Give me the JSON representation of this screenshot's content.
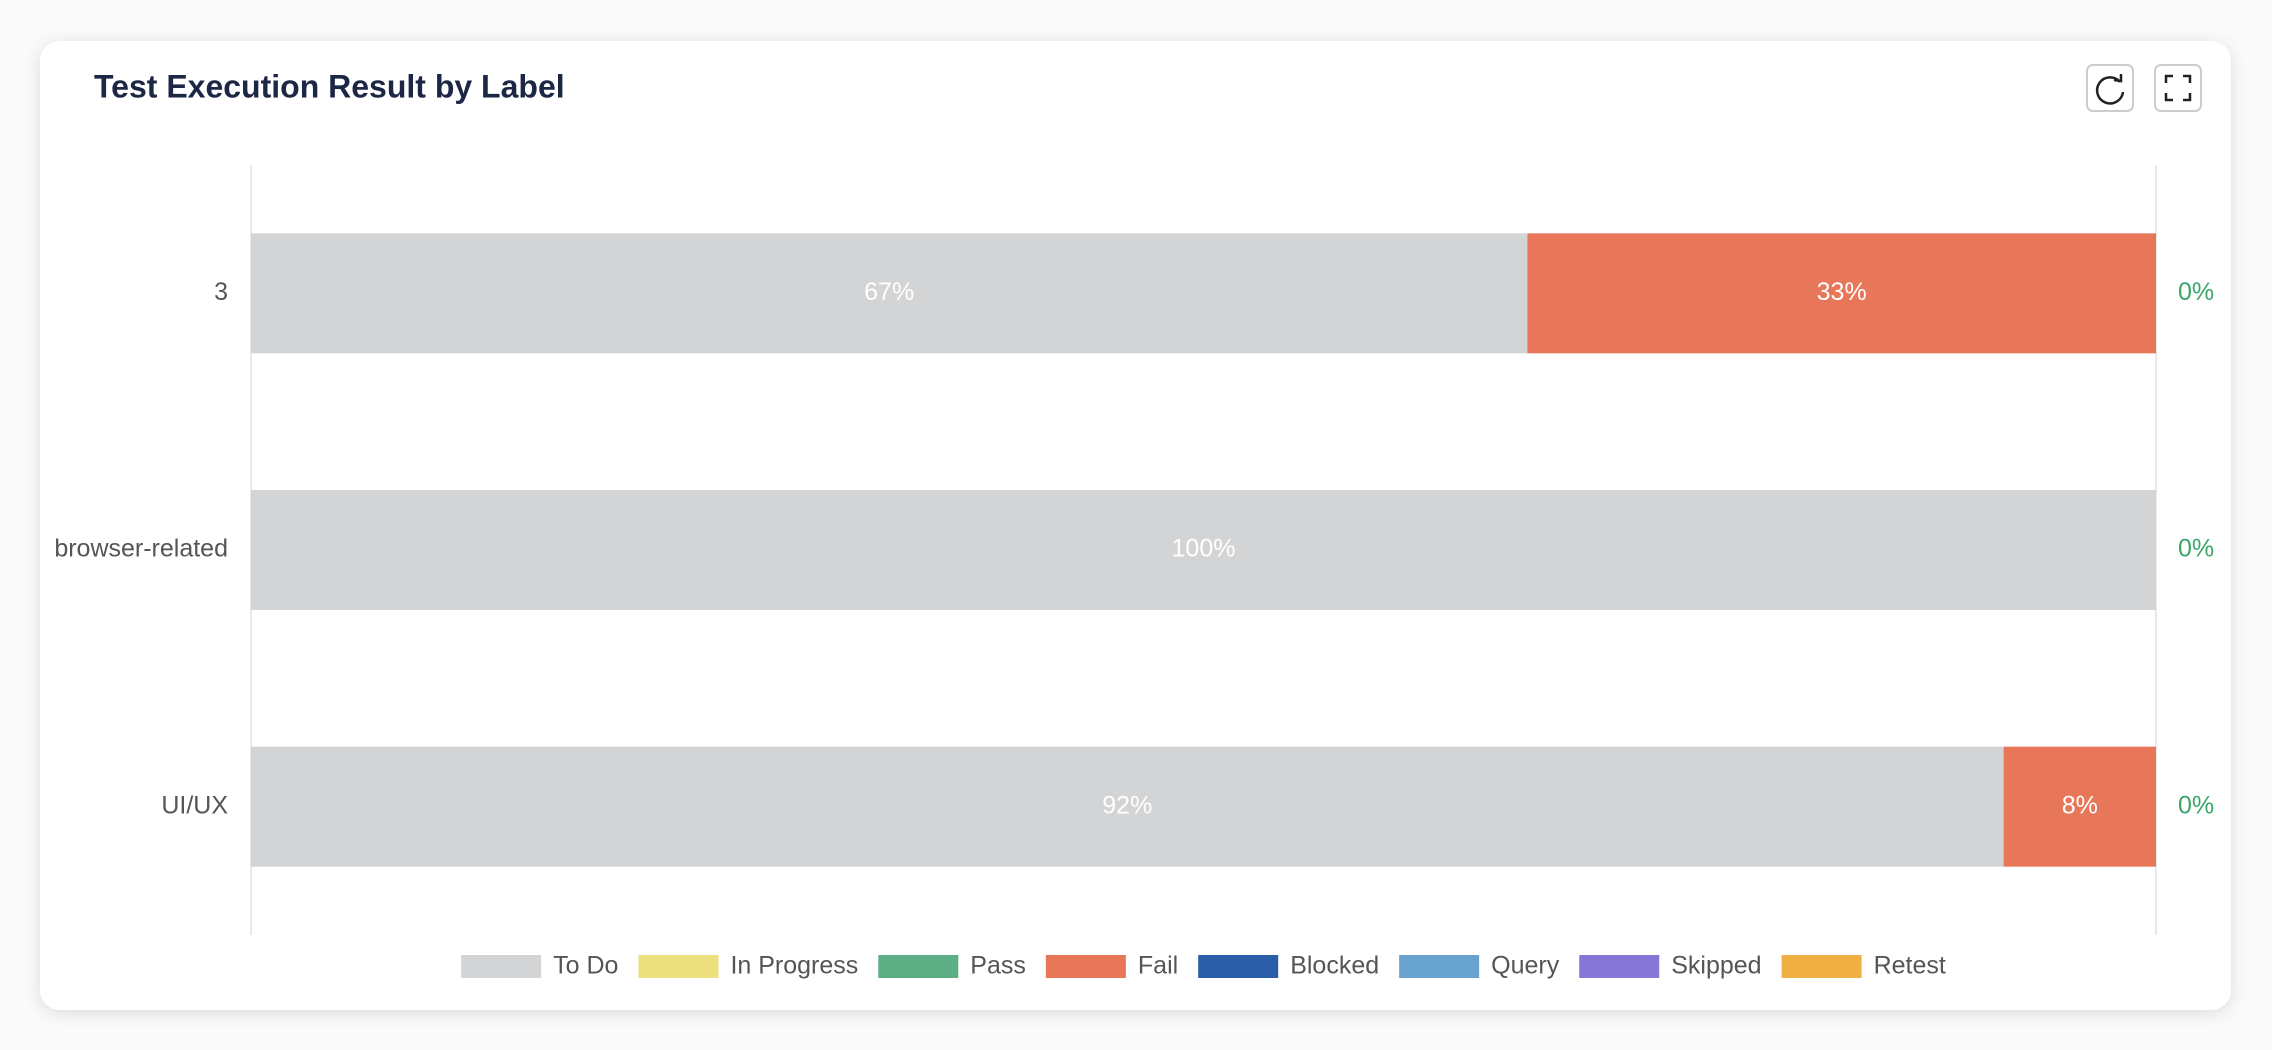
{
  "chart_data": {
    "type": "stacked-bar-horizontal",
    "title": "Test Execution Result by Label",
    "categories": [
      "3",
      "browser-related",
      "UI/UX"
    ],
    "xlim": [
      0,
      100
    ],
    "series": [
      {
        "name": "To Do",
        "color": "#d3d4d6",
        "values": [
          67,
          100,
          92
        ],
        "value_labels": [
          "67%",
          "100%",
          "92%"
        ]
      },
      {
        "name": "In Progress",
        "color": "#ede07f",
        "values": [
          0,
          0,
          0
        ]
      },
      {
        "name": "Pass",
        "color": "#5caf84",
        "values": [
          0,
          0,
          0
        ],
        "value_labels": [
          "0%",
          "0%",
          "0%"
        ]
      },
      {
        "name": "Fail",
        "color": "#e8775a",
        "values": [
          33,
          0,
          8
        ],
        "value_labels": [
          "33%",
          null,
          "8%"
        ]
      },
      {
        "name": "Blocked",
        "color": "#2a5ea8",
        "values": [
          0,
          0,
          0
        ]
      },
      {
        "name": "Query",
        "color": "#68a3cf",
        "values": [
          0,
          0,
          0
        ]
      },
      {
        "name": "Skipped",
        "color": "#8676d6",
        "values": [
          0,
          0,
          0
        ]
      },
      {
        "name": "Retest",
        "color": "#f1ae43",
        "values": [
          0,
          0,
          0
        ]
      }
    ]
  }
}
